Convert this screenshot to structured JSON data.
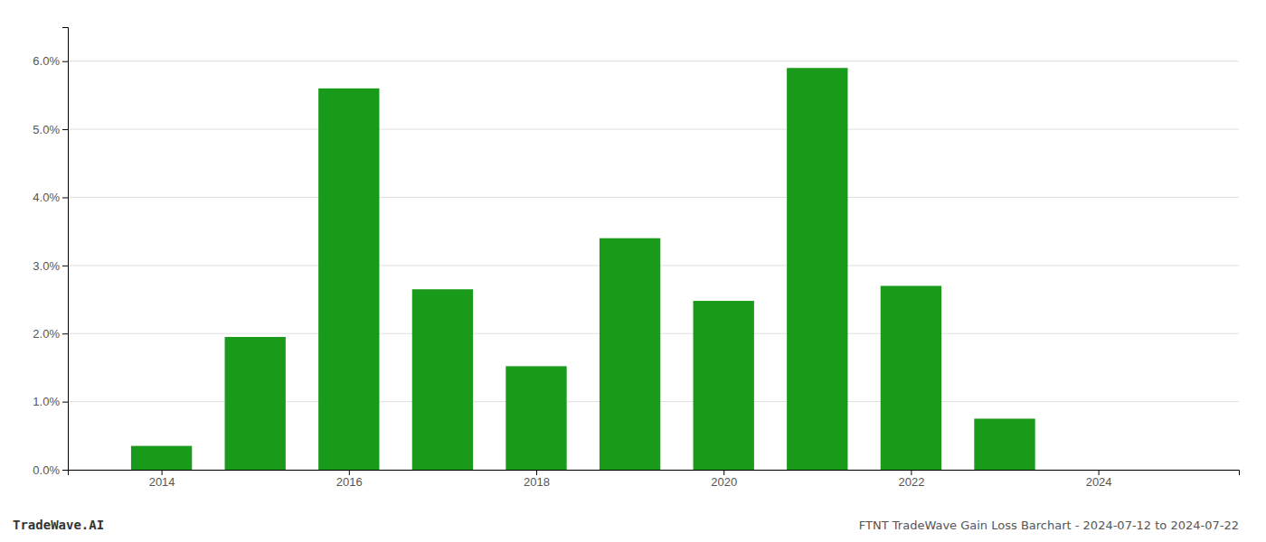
{
  "chart_data": {
    "type": "bar",
    "title": "FTNT TradeWave Gain Loss Barchart - 2024-07-12 to 2024-07-22",
    "annotations": [
      "TradeWave.AI"
    ],
    "x": [
      2014,
      2015,
      2016,
      2017,
      2018,
      2019,
      2020,
      2021,
      2022,
      2023,
      2024
    ],
    "values": [
      0.0035,
      0.0195,
      0.056,
      0.0265,
      0.0152,
      0.034,
      0.0248,
      0.059,
      0.027,
      0.0075,
      0.0
    ],
    "color": "#1a9a1a",
    "xlim": [
      2013.0,
      2025.5
    ],
    "xticks": [
      2014,
      2016,
      2018,
      2020,
      2022,
      2024
    ],
    "ylim": [
      0.0,
      0.065
    ],
    "yticks": [
      {
        "value": 0.0,
        "label": "0.0%"
      },
      {
        "value": 0.01,
        "label": "1.0%"
      },
      {
        "value": 0.02,
        "label": "2.0%"
      },
      {
        "value": 0.03,
        "label": "3.0%"
      },
      {
        "value": 0.04,
        "label": "4.0%"
      },
      {
        "value": 0.05,
        "label": "5.0%"
      },
      {
        "value": 0.06,
        "label": "6.0%"
      }
    ],
    "grid": true
  }
}
